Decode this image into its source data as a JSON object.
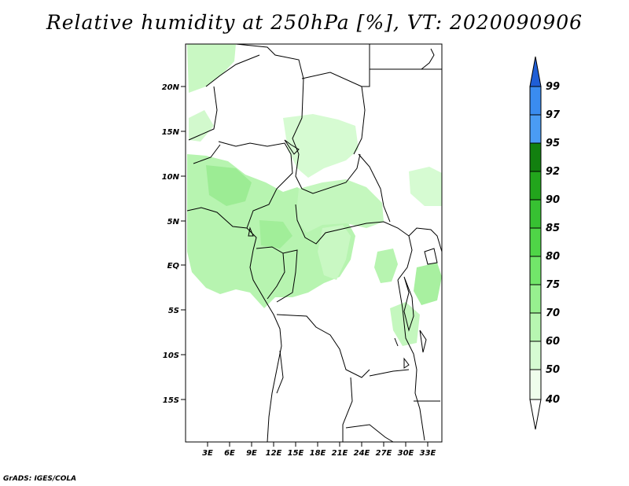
{
  "title": "Relative humidity at 250hPa [%], VT: 2020090906",
  "credit": "GrADS: IGES/COLA",
  "lat_labels": [
    "20N",
    "15N",
    "10N",
    "5N",
    "EQ",
    "5S",
    "10S",
    "15S"
  ],
  "lon_labels": [
    "3E",
    "6E",
    "9E",
    "12E",
    "15E",
    "18E",
    "21E",
    "24E",
    "27E",
    "30E",
    "33E"
  ],
  "colorbar": {
    "levels": [
      "99",
      "97",
      "95",
      "92",
      "90",
      "85",
      "80",
      "75",
      "70",
      "60",
      "50",
      "40"
    ],
    "colors": [
      "#1f5ed6",
      "#3a8cf0",
      "#12800f",
      "#22a51c",
      "#37c132",
      "#4fd547",
      "#72e66a",
      "#97f08f",
      "#b7f6b1",
      "#d6fbd2",
      "#effdec"
    ]
  },
  "map_extent": {
    "lon_min": 0,
    "lon_max": 35,
    "lat_min": -20,
    "lat_max": 25
  }
}
